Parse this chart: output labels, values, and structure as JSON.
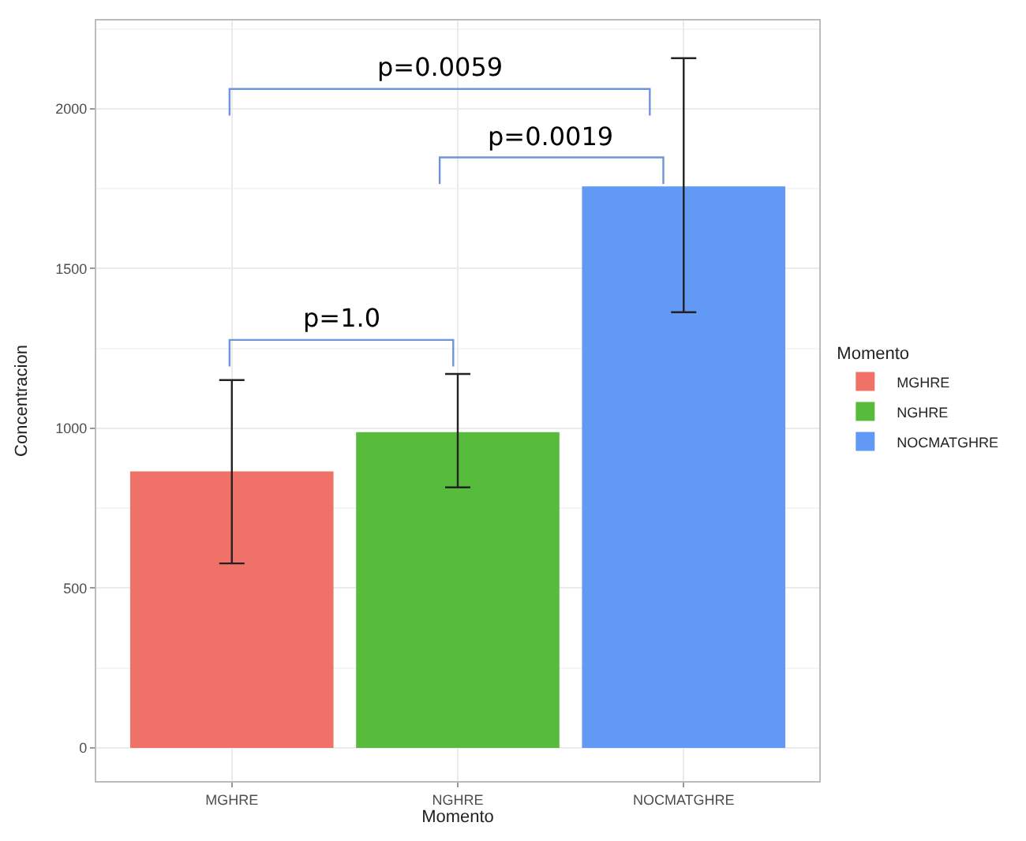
{
  "chart_data": {
    "type": "bar",
    "xlabel": "Momento",
    "ylabel": "Concentracion",
    "legend_title": "Momento",
    "categories": [
      "MGHRE",
      "NGHRE",
      "NOCMATGHRE"
    ],
    "series": [
      {
        "name": "MGHRE",
        "color": "#f07168",
        "values": [
          865,
          null,
          null
        ],
        "errors": [
          [
            577,
            1151
          ],
          null,
          null
        ]
      },
      {
        "name": "NGHRE",
        "color": "#57bb3c",
        "values": [
          null,
          988,
          null
        ],
        "errors": [
          null,
          [
            815,
            1170
          ],
          null
        ]
      },
      {
        "name": "NOCMATGHRE",
        "color": "#6199f5",
        "values": [
          null,
          null,
          1757
        ],
        "errors": [
          null,
          null,
          [
            1363,
            2158
          ]
        ]
      }
    ],
    "ylim": [
      -104,
      2276
    ],
    "yticks": [
      0,
      500,
      1000,
      1500,
      2000
    ],
    "grid": true,
    "legend": "right",
    "annotations": [
      "p=0.0059",
      "p=0.0019",
      "p=1.0"
    ]
  }
}
